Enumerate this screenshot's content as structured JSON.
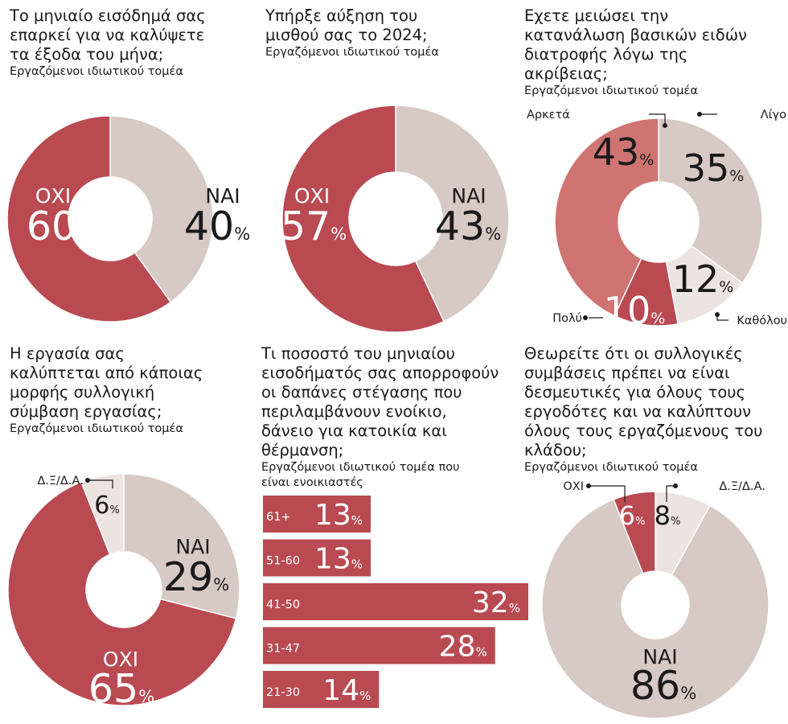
{
  "chart_data": [
    {
      "type": "pie",
      "title": "Το μηνιαίο εισόδημά σας επαρκεί για να καλύψετε τα έξοδα του μήνα;",
      "subtitle": "Εργαζόμενοι ιδιωτικού τομέα",
      "slices": [
        {
          "label": "ΝΑΙ",
          "value": 40,
          "color": "#d7c9c3"
        },
        {
          "label": "ΟΧΙ",
          "value": 60,
          "color": "#b94a52"
        }
      ]
    },
    {
      "type": "pie",
      "title": "Υπήρξε αύξηση του μισθού σας το 2024;",
      "subtitle": "Εργαζόμενοι ιδιωτικού τομέα",
      "slices": [
        {
          "label": "ΝΑΙ",
          "value": 43,
          "color": "#d7c9c3"
        },
        {
          "label": "ΟΧΙ",
          "value": 57,
          "color": "#b94a52"
        }
      ]
    },
    {
      "type": "pie",
      "title": "Εχετε μειώσει την κατανάλωση βασικών ειδών διατροφής λόγω της ακρίβειας;",
      "subtitle": "Εργαζόμενοι ιδιωτικού τομέα",
      "slices": [
        {
          "label": "Λίγο",
          "value": 35,
          "color": "#d7c9c3"
        },
        {
          "label": "Καθόλου",
          "value": 12,
          "color": "#ece4e1"
        },
        {
          "label": "Πολύ",
          "value": 10,
          "color": "#b94a52"
        },
        {
          "label": "Αρκετά",
          "value": 43,
          "color": "#cf7472"
        }
      ]
    },
    {
      "type": "pie",
      "title": "Η εργασία σας καλύπτεται από κάποιας μορφής συλλογική σύμβαση εργασίας;",
      "subtitle": "Εργαζόμενοι ιδιωτικού τομέα",
      "slices": [
        {
          "label": "ΝΑΙ",
          "value": 29,
          "color": "#d7c9c3"
        },
        {
          "label": "ΟΧΙ",
          "value": 65,
          "color": "#b94a52"
        },
        {
          "label": "Δ.Ξ/Δ.Α.",
          "value": 6,
          "color": "#ece4e1"
        }
      ]
    },
    {
      "type": "bar",
      "orientation": "horizontal",
      "title": "Τι ποσοστό του μηνιαίου εισοδήματός σας απορροφούν οι δαπάνες στέγασης που περιλαμβάνουν ενοίκιο, δάνειο για κατοικία και θέρμανση;",
      "subtitle": "Εργαζόμενοι ιδιωτικού τομέα που είναι ενοικιαστές",
      "categories": [
        "61+",
        "51-60",
        "41-50",
        "31-47",
        "21-30"
      ],
      "values": [
        13,
        13,
        32,
        28,
        14
      ],
      "color": "#b94a52"
    },
    {
      "type": "pie",
      "title": "Θεωρείτε ότι οι συλλογικές συμβάσεις πρέπει να είναι δεσμευτικές για όλους τους εργοδότες και να καλύπτουν όλους τους εργαζόμενους του κλάδου;",
      "subtitle": "Εργαζόμενοι ιδιωτικού τομέα",
      "slices": [
        {
          "label": "Δ.Ξ/Δ.Α.",
          "value": 8,
          "color": "#ece4e1"
        },
        {
          "label": "ΝΑΙ",
          "value": 86,
          "color": "#d7c9c3"
        },
        {
          "label": "ΟΧΙ",
          "value": 6,
          "color": "#b94a52"
        }
      ]
    }
  ],
  "pct_symbol": "%"
}
